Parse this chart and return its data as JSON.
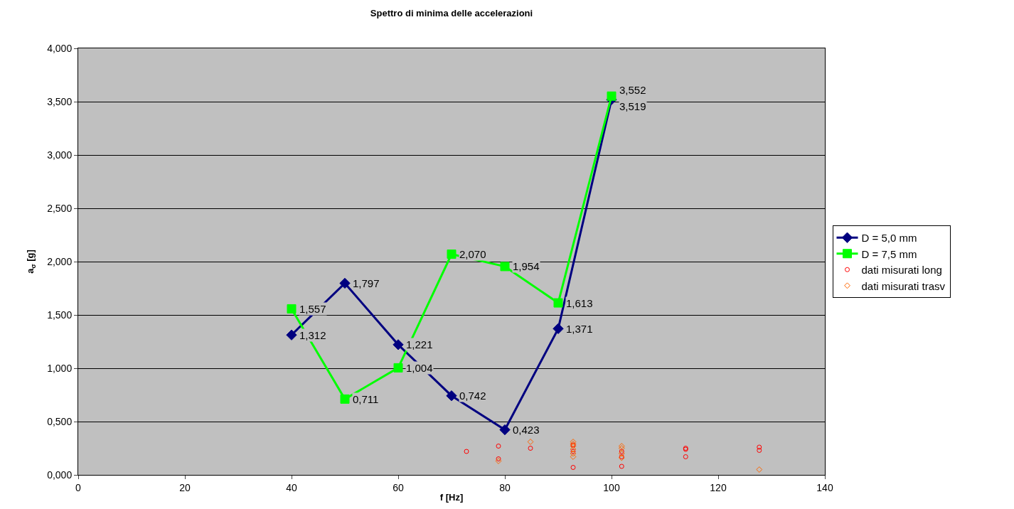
{
  "chart_data": {
    "type": "line",
    "title": "Spettro di minima delle accelerazioni",
    "xlabel": "f [Hz]",
    "ylabel": "a$_{σ}$ [g]",
    "xlim": [
      0,
      140
    ],
    "xticks": [
      0,
      20,
      40,
      60,
      80,
      100,
      120,
      140
    ],
    "ylim": [
      0,
      4
    ],
    "yticks": [
      {
        "value": 0,
        "label": "0,000"
      },
      {
        "value": 0.5,
        "label": "0,500"
      },
      {
        "value": 1,
        "label": "1,000"
      },
      {
        "value": 1.5,
        "label": "1,500"
      },
      {
        "value": 2,
        "label": "2,000"
      },
      {
        "value": 2.5,
        "label": "2,500"
      },
      {
        "value": 3,
        "label": "3,000"
      },
      {
        "value": 3.5,
        "label": "3,500"
      },
      {
        "value": 4,
        "label": "4,000"
      }
    ],
    "grid": "y",
    "legend": "right",
    "series": [
      {
        "name": "D = 5,0 mm",
        "color": "#000080",
        "marker": "diamond",
        "x": [
          40,
          50,
          60,
          70,
          80,
          90,
          100
        ],
        "values": [
          1.312,
          1.797,
          1.221,
          0.742,
          0.423,
          1.371,
          3.519
        ],
        "value_labels": [
          "1,312",
          "1,797",
          "1,221",
          "0,742",
          "0,423",
          "1,371",
          "3,519"
        ]
      },
      {
        "name": "D = 7,5 mm",
        "color": "#00ff00",
        "marker": "square",
        "x": [
          40,
          50,
          60,
          70,
          80,
          90,
          100
        ],
        "values": [
          1.557,
          0.711,
          1.004,
          2.07,
          1.954,
          1.613,
          3.552
        ],
        "value_labels": [
          "1,557",
          "0,711",
          "1,004",
          "2,070",
          "1,954",
          "1,613",
          "3,552"
        ]
      },
      {
        "name": "dati misurati long",
        "type": "scatter",
        "color": "#ff0000",
        "marker": "circle",
        "x": [
          72.8,
          78.8,
          78.8,
          84.8,
          92.8,
          92.8,
          92.8,
          101.9,
          101.9,
          101.9,
          113.9,
          113.9,
          113.9,
          127.7,
          127.7
        ],
        "values": [
          0.22,
          0.27,
          0.15,
          0.25,
          0.07,
          0.28,
          0.22,
          0.08,
          0.22,
          0.17,
          0.25,
          0.24,
          0.17,
          0.26,
          0.23
        ]
      },
      {
        "name": "dati misurati trasv",
        "type": "scatter",
        "color": "#ff6600",
        "marker": "diamond",
        "x": [
          78.8,
          84.8,
          92.8,
          92.8,
          92.8,
          92.8,
          92.8,
          92.8,
          101.9,
          101.9,
          101.9,
          101.9,
          127.7
        ],
        "values": [
          0.13,
          0.31,
          0.31,
          0.29,
          0.27,
          0.24,
          0.2,
          0.17,
          0.27,
          0.25,
          0.2,
          0.16,
          0.05
        ]
      }
    ]
  }
}
